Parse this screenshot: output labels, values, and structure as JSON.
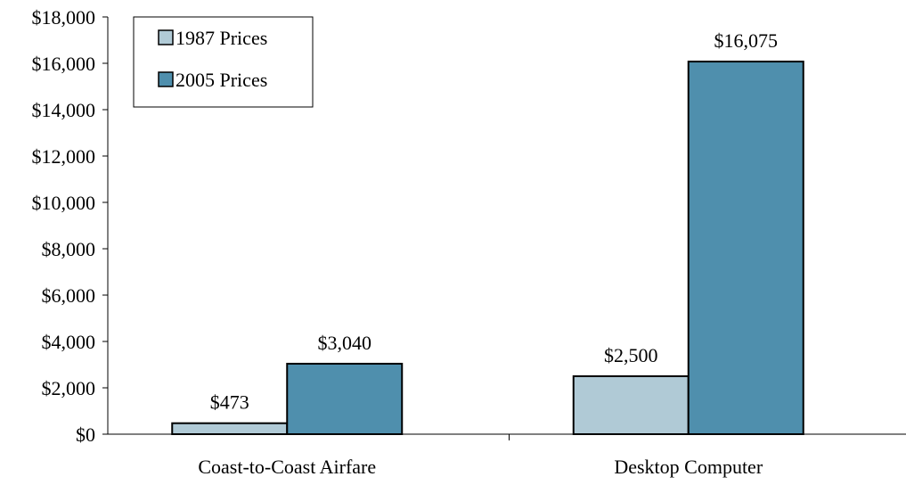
{
  "chart_data": {
    "type": "bar",
    "title": "",
    "xlabel": "",
    "ylabel": "",
    "categories": [
      "Coast-to-Coast Airfare",
      "Desktop Computer"
    ],
    "series": [
      {
        "name": "1987 Prices",
        "values": [
          473,
          2500
        ],
        "labels": [
          "$473",
          "$2,500"
        ],
        "color": "#b0cad6"
      },
      {
        "name": "2005 Prices",
        "values": [
          3040,
          16075
        ],
        "labels": [
          "$3,040",
          "$16,075"
        ],
        "color": "#4f8fad"
      }
    ],
    "ylim": [
      0,
      18000
    ],
    "yticks": [
      0,
      2000,
      4000,
      6000,
      8000,
      10000,
      12000,
      14000,
      16000,
      18000
    ],
    "ytick_labels": [
      "$0",
      "$2,000",
      "$4,000",
      "$6,000",
      "$8,000",
      "$10,000",
      "$12,000",
      "$14,000",
      "$16,000",
      "$18,000"
    ],
    "grid": false,
    "legend_position": "top-left"
  }
}
